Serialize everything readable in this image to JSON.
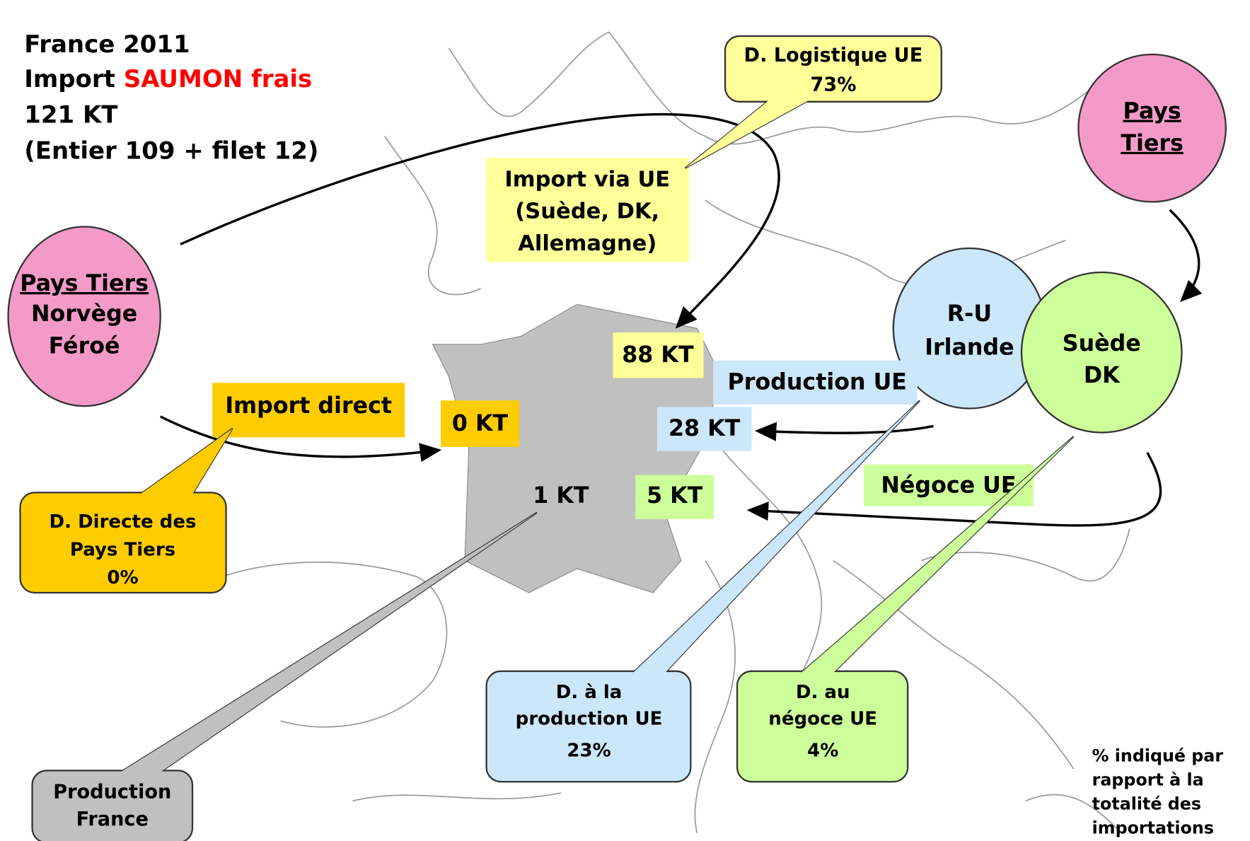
{
  "header": {
    "line1": "France 2011",
    "line2_prefix": "Import",
    "line2_highlight": "SAUMON frais",
    "line3": "121 KT",
    "line4": "(Entier 109 + filet 12)"
  },
  "circles": {
    "norvege": [
      "Pays Tiers",
      "Norvège",
      "Féroé"
    ],
    "pays_tiers": [
      "Pays",
      "Tiers"
    ],
    "royaume_uni": [
      "R-U",
      "Irlande"
    ],
    "suede": [
      "Suède",
      "DK"
    ]
  },
  "labels": {
    "import_via_ue": [
      "Import via UE",
      "(Suède, DK,",
      "Allemagne)"
    ],
    "import_direct": "Import direct",
    "production_ue": "Production UE",
    "negoce_ue": "Négoce UE"
  },
  "quantities": {
    "via_ue": "88 KT",
    "direct": "0 KT",
    "production_ue": "28 KT",
    "negoce_ue": "5 KT",
    "france": "1 KT"
  },
  "callouts": {
    "logistique": [
      "D. Logistique UE",
      "73%"
    ],
    "directe": [
      "D. Directe des",
      "Pays Tiers",
      "0%"
    ],
    "production_ue": [
      "D. à la",
      "production UE",
      "23%"
    ],
    "negoce_ue": [
      "D. au",
      "négoce UE",
      "4%"
    ],
    "production_france": [
      "Production",
      "France"
    ]
  },
  "note": [
    "% indiqué par",
    "rapport à la",
    "totalité des",
    "importations"
  ]
}
